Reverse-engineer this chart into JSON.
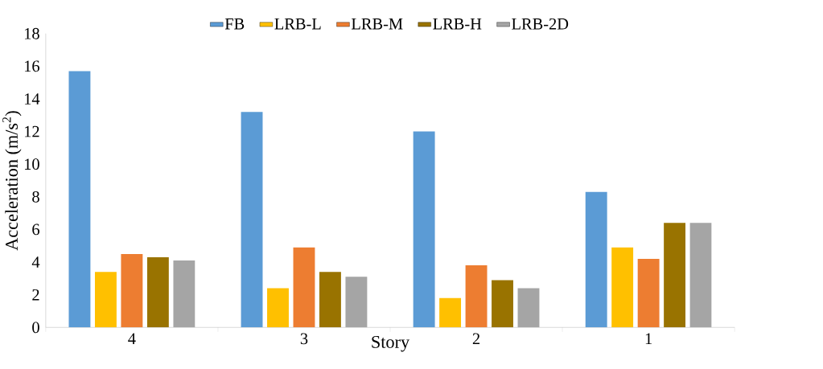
{
  "chart_data": {
    "type": "bar",
    "xlabel": "Story",
    "ylabel": "Acceleration (m/s$^{2}$)",
    "categories": [
      "4",
      "3",
      "2",
      "1"
    ],
    "series": [
      {
        "name": "FB",
        "color": "#5b9bd5",
        "values": [
          15.7,
          13.2,
          12.0,
          8.3
        ]
      },
      {
        "name": "LRB-L",
        "color": "#ffc000",
        "values": [
          3.4,
          2.4,
          1.8,
          4.9
        ]
      },
      {
        "name": "LRB-M",
        "color": "#ed7d31",
        "values": [
          4.5,
          4.9,
          3.8,
          4.2
        ]
      },
      {
        "name": "LRB-H",
        "color": "#997300",
        "values": [
          4.3,
          3.4,
          2.9,
          6.4
        ]
      },
      {
        "name": "LRB-2D",
        "color": "#a5a5a5",
        "values": [
          4.1,
          3.1,
          2.4,
          6.4
        ]
      }
    ],
    "ylim": [
      0,
      18
    ],
    "yticks": [
      0,
      2,
      4,
      6,
      8,
      10,
      12,
      14,
      16,
      18
    ],
    "legend": "top",
    "grid": false
  }
}
